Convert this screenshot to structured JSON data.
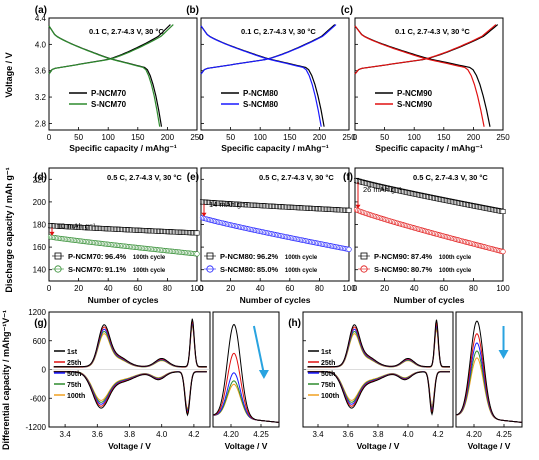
{
  "figure": {
    "ylabel_voltage": "Voltage / V",
    "ylabel_discharge": "Discharge capacity / mAh g⁻¹",
    "ylabel_diff": "Differential capacity / mAhg⁻¹V⁻¹",
    "xlabel_capacity": "Specific capacity / mAhg⁻¹",
    "xlabel_cycles": "Number of cycles",
    "xlabel_voltage": "Voltage / V"
  },
  "chart_data": [
    {
      "panel": "(a)",
      "type": "line",
      "condition": "0.1 C, 2.7-4.3 V, 30 °C",
      "xlim": [
        0,
        250
      ],
      "ylim": [
        2.7,
        4.4
      ],
      "xticks": [
        0,
        50,
        100,
        150,
        200,
        250
      ],
      "yticks": [
        2.8,
        3.2,
        3.6,
        4.0,
        4.4
      ],
      "xlabel": "Specific capacity / mAhg⁻¹",
      "ylabel": "Voltage / V",
      "series": [
        {
          "name": "P-NCM70",
          "color": "#000000",
          "charge_capacity": 205,
          "discharge_capacity": 190
        },
        {
          "name": "S-NCM70",
          "color": "#2e8b2e",
          "charge_capacity": 210,
          "discharge_capacity": 187
        }
      ]
    },
    {
      "panel": "(b)",
      "type": "line",
      "condition": "0.1 C, 2.7-4.3 V, 30 °C",
      "xlim": [
        0,
        250
      ],
      "ylim": [
        2.7,
        4.4
      ],
      "xticks": [
        0,
        50,
        100,
        150,
        200,
        250
      ],
      "yticks": [
        2.8,
        3.2,
        3.6,
        4.0,
        4.4
      ],
      "series": [
        {
          "name": "P-NCM80",
          "color": "#000000",
          "charge_capacity": 226,
          "discharge_capacity": 208
        },
        {
          "name": "S-NCM80",
          "color": "#1a1aff",
          "charge_capacity": 228,
          "discharge_capacity": 203
        }
      ]
    },
    {
      "panel": "(c)",
      "type": "line",
      "condition": "0.1 C, 2.7-4.3 V, 30 °C",
      "xlim": [
        0,
        250
      ],
      "ylim": [
        2.7,
        4.4
      ],
      "xticks": [
        0,
        50,
        100,
        150,
        200,
        250
      ],
      "yticks": [
        2.8,
        3.2,
        3.6,
        4.0,
        4.4
      ],
      "series": [
        {
          "name": "P-NCM90",
          "color": "#000000",
          "charge_capacity": 241,
          "discharge_capacity": 228
        },
        {
          "name": "S-NCM90",
          "color": "#e01010",
          "charge_capacity": 238,
          "discharge_capacity": 218
        }
      ]
    },
    {
      "panel": "(d)",
      "type": "scatter",
      "condition": "0.5 C, 2.7-4.3 V, 30 °C",
      "xlim": [
        0,
        100
      ],
      "ylim": [
        130,
        230
      ],
      "xticks": [
        0,
        20,
        40,
        60,
        80,
        100
      ],
      "yticks": [
        140,
        160,
        180,
        200,
        220
      ],
      "xlabel": "Number of cycles",
      "ylabel": "Discharge capacity / mAh g⁻¹",
      "annotation": "10 mAh g⁻¹",
      "series": [
        {
          "name": "P-NCM70",
          "retention": "96.4%",
          "cycle": "100th cycle",
          "color": "#000000",
          "start": 179,
          "end": 172.5
        },
        {
          "name": "S-NCM70",
          "retention": "91.1%",
          "cycle": "100th cycle",
          "color": "#2e8b2e",
          "start": 169,
          "end": 154
        }
      ]
    },
    {
      "panel": "(e)",
      "type": "scatter",
      "condition": "0.5 C, 2.7-4.3 V, 30 °C",
      "xlim": [
        0,
        100
      ],
      "ylim": [
        130,
        230
      ],
      "xticks": [
        0,
        20,
        40,
        60,
        80,
        100
      ],
      "yticks": [
        140,
        160,
        180,
        200,
        220
      ],
      "annotation": "14 mAh g⁻¹",
      "series": [
        {
          "name": "P-NCM80",
          "retention": "96.2%",
          "cycle": "100th cycle",
          "color": "#000000",
          "start": 200,
          "end": 192.5
        },
        {
          "name": "S-NCM80",
          "retention": "85.0%",
          "cycle": "100th cycle",
          "color": "#1a1aff",
          "start": 186,
          "end": 158
        }
      ]
    },
    {
      "panel": "(f)",
      "type": "scatter",
      "condition": "0.5 C, 2.7-4.3 V, 30 °C",
      "xlim": [
        0,
        100
      ],
      "ylim": [
        130,
        230
      ],
      "xticks": [
        0,
        20,
        40,
        60,
        80,
        100
      ],
      "yticks": [
        140,
        160,
        180,
        200,
        220
      ],
      "annotation": "26 mAh g⁻¹",
      "series": [
        {
          "name": "P-NCM90",
          "retention": "87.4%",
          "cycle": "100th cycle",
          "color": "#000000",
          "start": 219,
          "end": 191.5
        },
        {
          "name": "S-NCM90",
          "retention": "80.7%",
          "cycle": "100th cycle",
          "color": "#e01010",
          "start": 193,
          "end": 156
        }
      ]
    },
    {
      "panel": "(g)",
      "type": "line",
      "xlim": [
        3.3,
        4.3
      ],
      "ylim": [
        -1200,
        1200
      ],
      "xticks": [
        3.4,
        3.6,
        3.8,
        4.0,
        4.2
      ],
      "yticks": [
        -1200,
        -600,
        0,
        600,
        1200
      ],
      "xlabel": "Voltage / V",
      "ylabel": "Differential capacity / mAhg⁻¹V⁻¹",
      "series": [
        {
          "name": "1st",
          "color": "#000000",
          "peak_4_2": 1000
        },
        {
          "name": "25th",
          "color": "#e01010",
          "peak_4_2": 960
        },
        {
          "name": "50th",
          "color": "#1a1aff",
          "peak_4_2": 930
        },
        {
          "name": "75th",
          "color": "#2e8b2e",
          "peak_4_2": 900
        },
        {
          "name": "100th",
          "color": "#f0a020",
          "peak_4_2": 870
        }
      ],
      "inset": {
        "xlim": [
          4.17,
          4.28
        ],
        "xticks": [
          4.2,
          4.25
        ],
        "peaks": [
          850,
          600,
          430,
          360,
          330
        ]
      }
    },
    {
      "panel": "(h)",
      "type": "line",
      "xlim": [
        3.3,
        4.3
      ],
      "ylim": [
        -1200,
        1200
      ],
      "xticks": [
        3.4,
        3.6,
        3.8,
        4.0,
        4.2
      ],
      "yticks": [
        -1200,
        -600,
        0,
        600,
        1200
      ],
      "series": [
        {
          "name": "1st",
          "color": "#000000",
          "peak_4_2": 980
        },
        {
          "name": "25th",
          "color": "#e01010",
          "peak_4_2": 920
        },
        {
          "name": "50th",
          "color": "#1a1aff",
          "peak_4_2": 880
        },
        {
          "name": "75th",
          "color": "#2e8b2e",
          "peak_4_2": 840
        },
        {
          "name": "100th",
          "color": "#f0a020",
          "peak_4_2": 800
        }
      ],
      "inset": {
        "xlim": [
          4.17,
          4.28
        ],
        "xticks": [
          4.2,
          4.25
        ],
        "peaks": [
          880,
          770,
          690,
          620,
          560
        ]
      }
    }
  ],
  "arrow_color": "#29a3e0"
}
